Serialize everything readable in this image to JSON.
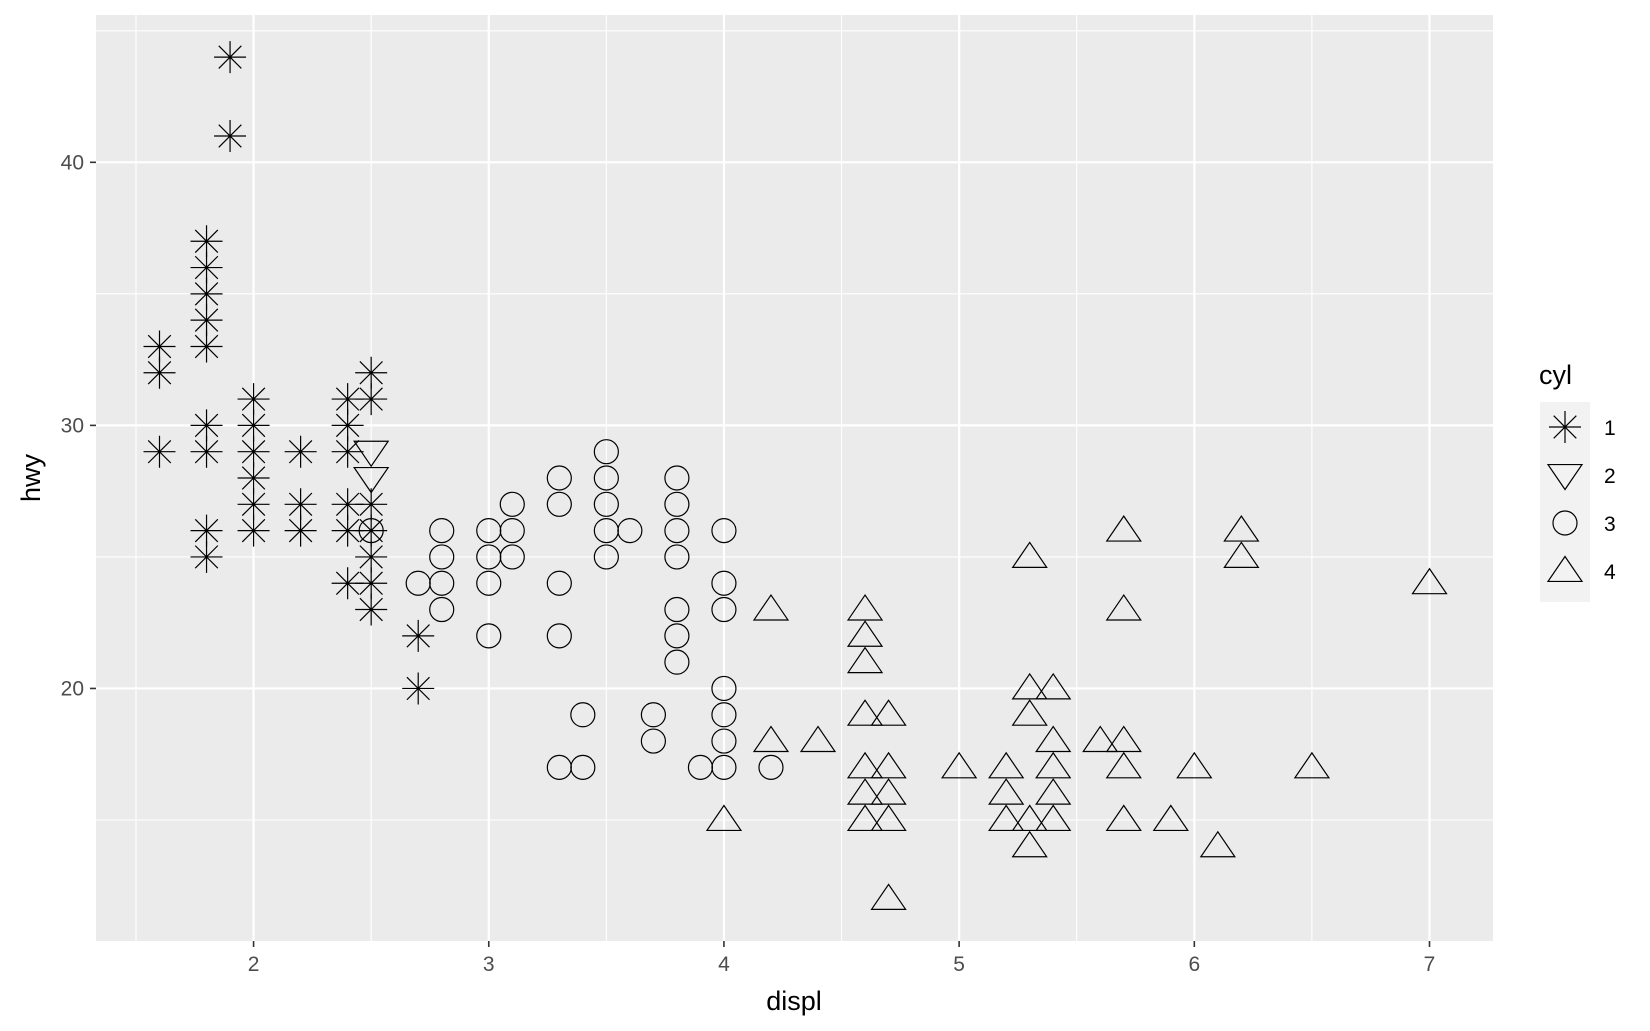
{
  "chart_data": {
    "type": "scatter",
    "xlabel": "displ",
    "ylabel": "hwy",
    "xlim": [
      1.33,
      7.27
    ],
    "ylim": [
      10.4,
      45.6
    ],
    "x_ticks": [
      2,
      3,
      4,
      5,
      6,
      7
    ],
    "y_ticks": [
      20,
      30,
      40
    ],
    "grid": true,
    "legend": {
      "title": "cyl",
      "placement": "right",
      "entries": [
        {
          "label": "1",
          "shape": "asterisk"
        },
        {
          "label": "2",
          "shape": "triangle-down"
        },
        {
          "label": "3",
          "shape": "circle"
        },
        {
          "label": "4",
          "shape": "triangle-up"
        }
      ]
    },
    "series": [
      {
        "name": "1",
        "shape": "asterisk",
        "points": [
          [
            1.6,
            33
          ],
          [
            1.6,
            32
          ],
          [
            1.6,
            29
          ],
          [
            1.8,
            37
          ],
          [
            1.8,
            36
          ],
          [
            1.8,
            35
          ],
          [
            1.8,
            34
          ],
          [
            1.8,
            33
          ],
          [
            1.8,
            30
          ],
          [
            1.8,
            29
          ],
          [
            1.8,
            26
          ],
          [
            1.8,
            25
          ],
          [
            1.9,
            44
          ],
          [
            1.9,
            41
          ],
          [
            2.0,
            31
          ],
          [
            2.0,
            30
          ],
          [
            2.0,
            29
          ],
          [
            2.0,
            28
          ],
          [
            2.0,
            27
          ],
          [
            2.0,
            26
          ],
          [
            2.2,
            29
          ],
          [
            2.2,
            27
          ],
          [
            2.2,
            26
          ],
          [
            2.4,
            31
          ],
          [
            2.4,
            30
          ],
          [
            2.4,
            29
          ],
          [
            2.4,
            27
          ],
          [
            2.4,
            26
          ],
          [
            2.4,
            24
          ],
          [
            2.5,
            32
          ],
          [
            2.5,
            31
          ],
          [
            2.5,
            27
          ],
          [
            2.5,
            26
          ],
          [
            2.5,
            25
          ],
          [
            2.5,
            24
          ],
          [
            2.5,
            23
          ],
          [
            2.7,
            22
          ],
          [
            2.7,
            20
          ]
        ]
      },
      {
        "name": "2",
        "shape": "triangle-down",
        "points": [
          [
            2.5,
            29
          ],
          [
            2.5,
            28
          ]
        ]
      },
      {
        "name": "3",
        "shape": "circle",
        "points": [
          [
            2.5,
            26
          ],
          [
            2.7,
            24
          ],
          [
            2.8,
            26
          ],
          [
            2.8,
            25
          ],
          [
            2.8,
            24
          ],
          [
            2.8,
            23
          ],
          [
            3.0,
            26
          ],
          [
            3.0,
            25
          ],
          [
            3.0,
            24
          ],
          [
            3.0,
            22
          ],
          [
            3.1,
            27
          ],
          [
            3.1,
            26
          ],
          [
            3.1,
            25
          ],
          [
            3.3,
            28
          ],
          [
            3.3,
            27
          ],
          [
            3.3,
            24
          ],
          [
            3.3,
            22
          ],
          [
            3.3,
            17
          ],
          [
            3.4,
            19
          ],
          [
            3.4,
            17
          ],
          [
            3.5,
            29
          ],
          [
            3.5,
            28
          ],
          [
            3.5,
            27
          ],
          [
            3.5,
            26
          ],
          [
            3.5,
            25
          ],
          [
            3.6,
            26
          ],
          [
            3.7,
            19
          ],
          [
            3.7,
            18
          ],
          [
            3.8,
            28
          ],
          [
            3.8,
            27
          ],
          [
            3.8,
            26
          ],
          [
            3.8,
            25
          ],
          [
            3.8,
            23
          ],
          [
            3.8,
            22
          ],
          [
            3.8,
            21
          ],
          [
            3.9,
            17
          ],
          [
            4.0,
            26
          ],
          [
            4.0,
            24
          ],
          [
            4.0,
            23
          ],
          [
            4.0,
            20
          ],
          [
            4.0,
            19
          ],
          [
            4.0,
            18
          ],
          [
            4.0,
            17
          ],
          [
            4.2,
            17
          ]
        ]
      },
      {
        "name": "4",
        "shape": "triangle-up",
        "points": [
          [
            4.0,
            15
          ],
          [
            4.2,
            23
          ],
          [
            4.2,
            18
          ],
          [
            4.4,
            18
          ],
          [
            4.6,
            23
          ],
          [
            4.6,
            22
          ],
          [
            4.6,
            21
          ],
          [
            4.6,
            19
          ],
          [
            4.6,
            17
          ],
          [
            4.6,
            16
          ],
          [
            4.6,
            15
          ],
          [
            4.7,
            19
          ],
          [
            4.7,
            17
          ],
          [
            4.7,
            16
          ],
          [
            4.7,
            15
          ],
          [
            4.7,
            12
          ],
          [
            5.0,
            17
          ],
          [
            5.2,
            17
          ],
          [
            5.2,
            16
          ],
          [
            5.2,
            15
          ],
          [
            5.3,
            25
          ],
          [
            5.3,
            20
          ],
          [
            5.3,
            19
          ],
          [
            5.3,
            15
          ],
          [
            5.3,
            14
          ],
          [
            5.4,
            20
          ],
          [
            5.4,
            18
          ],
          [
            5.4,
            17
          ],
          [
            5.4,
            16
          ],
          [
            5.4,
            15
          ],
          [
            5.6,
            18
          ],
          [
            5.7,
            26
          ],
          [
            5.7,
            23
          ],
          [
            5.7,
            18
          ],
          [
            5.7,
            17
          ],
          [
            5.7,
            15
          ],
          [
            5.9,
            15
          ],
          [
            6.0,
            17
          ],
          [
            6.1,
            14
          ],
          [
            6.2,
            26
          ],
          [
            6.2,
            25
          ],
          [
            6.5,
            17
          ],
          [
            7.0,
            24
          ]
        ]
      }
    ]
  }
}
